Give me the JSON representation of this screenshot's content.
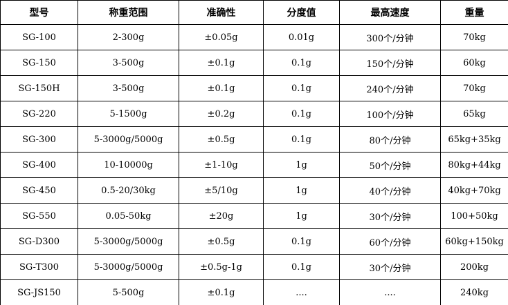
{
  "table": {
    "header": [
      "型号",
      "称重范围",
      "准确性",
      "分度值",
      "最高速度",
      "重量"
    ],
    "rows": [
      [
        "SG-100",
        "2-300g",
        "±0.05g",
        "0.01g",
        "300个/分钟",
        "70kg"
      ],
      [
        "SG-150",
        "3-500g",
        "±0.1g",
        "0.1g",
        "150个/分钟",
        "60kg"
      ],
      [
        "SG-150H",
        "3-500g",
        "±0.1g",
        "0.1g",
        "240个/分钟",
        "70kg"
      ],
      [
        "SG-220",
        "5-1500g",
        "±0.2g",
        "0.1g",
        "100个/分钟",
        "65kg"
      ],
      [
        "SG-300",
        "5-3000g/5000g",
        "±0.5g",
        "0.1g",
        "80个/分钟",
        "65kg+35kg"
      ],
      [
        "SG-400",
        "10-10000g",
        "±1-10g",
        "1g",
        "50个/分钟",
        "80kg+44kg"
      ],
      [
        "SG-450",
        "0.5-20/30kg",
        "±5/10g",
        "1g",
        "40个/分钟",
        "40kg+70kg"
      ],
      [
        "SG-550",
        "0.05-50kg",
        "±20g",
        "1g",
        "30个/分钟",
        "100+50kg"
      ],
      [
        "SG-D300",
        "5-3000g/5000g",
        "±0.5g",
        "0.1g",
        "60个/分钟",
        "60kg+150kg"
      ],
      [
        "SG-T300",
        "5-3000g/5000g",
        "±0.5g-1g",
        "0.1g",
        "30个/分钟",
        "200kg"
      ],
      [
        "SG-JS150",
        "5-500g",
        "±0.1g",
        "....",
        "....",
        "240kg"
      ]
    ]
  }
}
